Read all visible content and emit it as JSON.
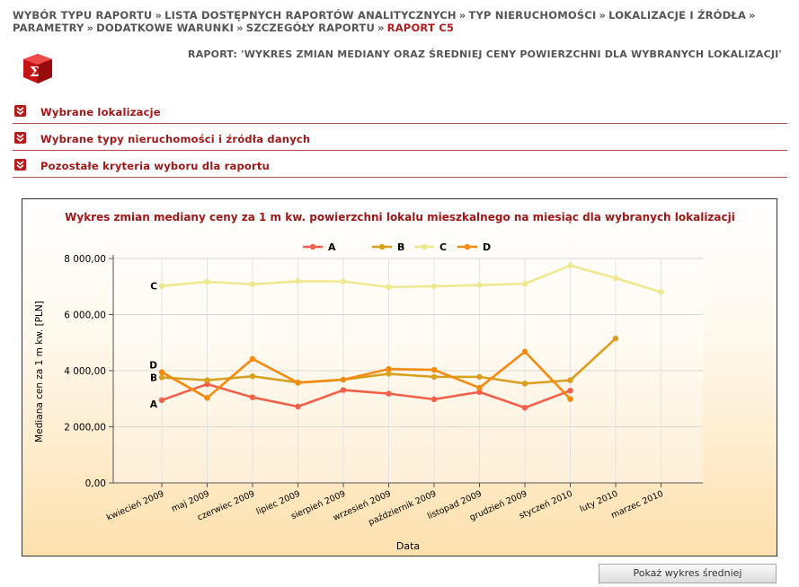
{
  "breadcrumb": {
    "items": [
      "WYBÓR TYPU RAPORTU",
      "LISTA DOSTĘPNYCH RAPORTÓW ANALITYCZNYCH",
      "TYP NIERUCHOMOŚCI",
      "LOKALIZACJE I ŹRÓDŁA",
      "PARAMETRY",
      "DODATKOWE WARUNKI",
      "SZCZEGÓŁY RAPORTU"
    ],
    "separator": "»",
    "current": "RAPORT C5"
  },
  "report_title": "RAPORT: 'WYKRES ZMIAN MEDIANY ORAZ ŚREDNIEJ CENY POWIERZCHNI DLA WYBRANYCH LOKALIZACJI'",
  "sections": [
    {
      "label": "Wybrane lokalizacje"
    },
    {
      "label": "Wybrane typy nieruchomości i źródła danych"
    },
    {
      "label": "Pozostałe kryteria wyboru dla raportu"
    }
  ],
  "colors": {
    "accent": "#a01818",
    "A": "#f4604a",
    "B": "#d9a020",
    "C": "#eee890",
    "D": "#f48a10"
  },
  "icons": {
    "logo": "red-sigma-cube-icon",
    "section_toggle": "double-chevron-down-icon"
  },
  "chart_data": {
    "type": "line",
    "title": "Wykres zmian mediany ceny za 1 m kw. powierzchni lokalu mieszkalnego na miesiąc dla wybranych lokalizacji",
    "xlabel": "Data",
    "ylabel": "Mediana cen za 1 m kw. [PLN]",
    "ylim": [
      0,
      8000
    ],
    "yticks": [
      0,
      2000,
      4000,
      6000,
      8000
    ],
    "ytick_labels": [
      "0,00",
      "2 000,00",
      "4 000,00",
      "6 000,00",
      "8 000,00"
    ],
    "grid": true,
    "legend": "top-center",
    "categories": [
      "kwiecień 2009",
      "maj 2009",
      "czerwiec 2009",
      "lipiec 2009",
      "sierpień 2009",
      "wrzesień 2009",
      "październik 2009",
      "listopad 2009",
      "grudzień 2009",
      "styczeń 2010",
      "luty 2010",
      "marzec 2010"
    ],
    "series": [
      {
        "name": "A",
        "values": [
          2950,
          3520,
          3050,
          2720,
          3310,
          3180,
          2980,
          3240,
          2680,
          3290,
          null,
          null
        ]
      },
      {
        "name": "B",
        "values": [
          3760,
          3660,
          3800,
          3580,
          3680,
          3890,
          3780,
          3780,
          3540,
          3660,
          5150,
          null
        ]
      },
      {
        "name": "C",
        "values": [
          7020,
          7170,
          7080,
          7190,
          7180,
          6980,
          7010,
          7050,
          7100,
          7750,
          7300,
          6800
        ]
      },
      {
        "name": "D",
        "values": [
          3950,
          3030,
          4420,
          3570,
          3680,
          4060,
          4030,
          3390,
          4680,
          2990,
          null,
          null
        ]
      }
    ]
  },
  "button": {
    "label": "Pokaż wykres średniej"
  }
}
